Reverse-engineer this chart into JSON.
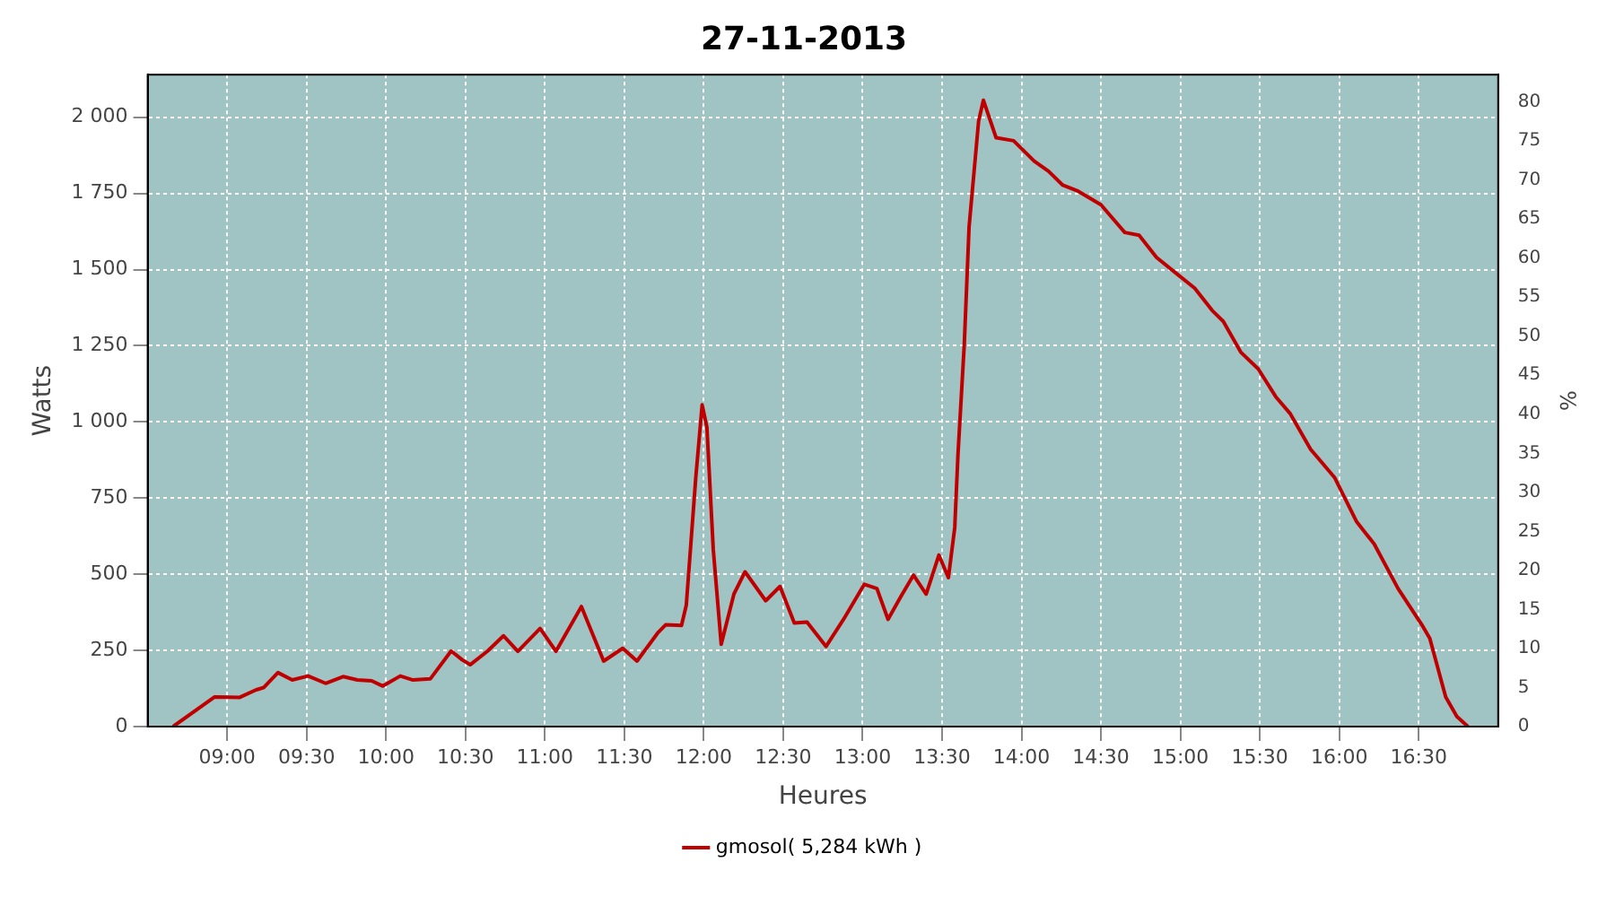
{
  "chart_data": {
    "type": "line",
    "title": "27-11-2013",
    "xlabel": "Heures",
    "ylabel": "Watts",
    "y2label": "%",
    "xlim": [
      8.5,
      17
    ],
    "ylim": [
      0,
      2140
    ],
    "y2lim": [
      0,
      83.5
    ],
    "xticks": [
      {
        "value": 9,
        "label": "09:00"
      },
      {
        "value": 9.5,
        "label": "09:30"
      },
      {
        "value": 10,
        "label": "10:00"
      },
      {
        "value": 10.5,
        "label": "10:30"
      },
      {
        "value": 11,
        "label": "11:00"
      },
      {
        "value": 11.5,
        "label": "11:30"
      },
      {
        "value": 12,
        "label": "12:00"
      },
      {
        "value": 12.5,
        "label": "12:30"
      },
      {
        "value": 13,
        "label": "13:00"
      },
      {
        "value": 13.5,
        "label": "13:30"
      },
      {
        "value": 14,
        "label": "14:00"
      },
      {
        "value": 14.5,
        "label": "14:30"
      },
      {
        "value": 15,
        "label": "15:00"
      },
      {
        "value": 15.5,
        "label": "15:30"
      },
      {
        "value": 16,
        "label": "16:00"
      },
      {
        "value": 16.5,
        "label": "16:30"
      }
    ],
    "yticks": [
      0,
      250,
      500,
      750,
      {
        "value": 1000,
        "label": "1 000"
      },
      {
        "value": 1250,
        "label": "1 250"
      },
      {
        "value": 1500,
        "label": "1 500"
      },
      {
        "value": 1750,
        "label": "1 750"
      },
      {
        "value": 2000,
        "label": "2 000"
      }
    ],
    "y2ticks": [
      0,
      5,
      10,
      15,
      20,
      25,
      30,
      35,
      40,
      45,
      50,
      55,
      60,
      65,
      70,
      75,
      80
    ],
    "grid": true,
    "legend": "bottom",
    "marker": "none",
    "line_style": "solid",
    "series": [
      {
        "name": "gmosol( 5,284 kWh )",
        "color": "#c00000",
        "x": [
          8.66,
          8.92,
          9.08,
          9.18,
          9.23,
          9.32,
          9.41,
          9.51,
          9.62,
          9.73,
          9.82,
          9.91,
          9.98,
          10.09,
          10.17,
          10.28,
          10.41,
          10.48,
          10.53,
          10.64,
          10.74,
          10.83,
          10.97,
          11.07,
          11.23,
          11.37,
          11.49,
          11.58,
          11.71,
          11.76,
          11.86,
          11.89,
          11.95,
          11.99,
          12.02,
          12.06,
          12.11,
          12.19,
          12.26,
          12.39,
          12.48,
          12.57,
          12.65,
          12.77,
          12.88,
          13.01,
          13.09,
          13.16,
          13.24,
          13.32,
          13.4,
          13.48,
          13.54,
          13.58,
          13.6,
          13.64,
          13.67,
          13.73,
          13.76,
          13.84,
          13.95,
          14.08,
          14.17,
          14.26,
          14.35,
          14.5,
          14.65,
          14.74,
          14.85,
          14.98,
          15.09,
          15.2,
          15.27,
          15.38,
          15.49,
          15.6,
          15.69,
          15.82,
          15.97,
          16.11,
          16.22,
          16.37,
          16.52,
          16.57,
          16.67,
          16.74,
          16.81
        ],
        "values": [
          0,
          97,
          96,
          120,
          128,
          177,
          153,
          166,
          142,
          164,
          153,
          150,
          133,
          166,
          153,
          157,
          248,
          219,
          203,
          248,
          298,
          247,
          322,
          247,
          394,
          215,
          257,
          215,
          307,
          334,
          332,
          398,
          818,
          1056,
          982,
          581,
          270,
          435,
          508,
          413,
          460,
          340,
          343,
          263,
          352,
          467,
          453,
          352,
          426,
          497,
          435,
          563,
          489,
          654,
          891,
          1256,
          1640,
          1987,
          2056,
          1933,
          1923,
          1856,
          1823,
          1777,
          1759,
          1713,
          1622,
          1613,
          1540,
          1485,
          1439,
          1366,
          1330,
          1229,
          1174,
          1083,
          1028,
          910,
          818,
          672,
          599,
          453,
          334,
          289,
          97,
          33,
          0
        ]
      }
    ]
  }
}
